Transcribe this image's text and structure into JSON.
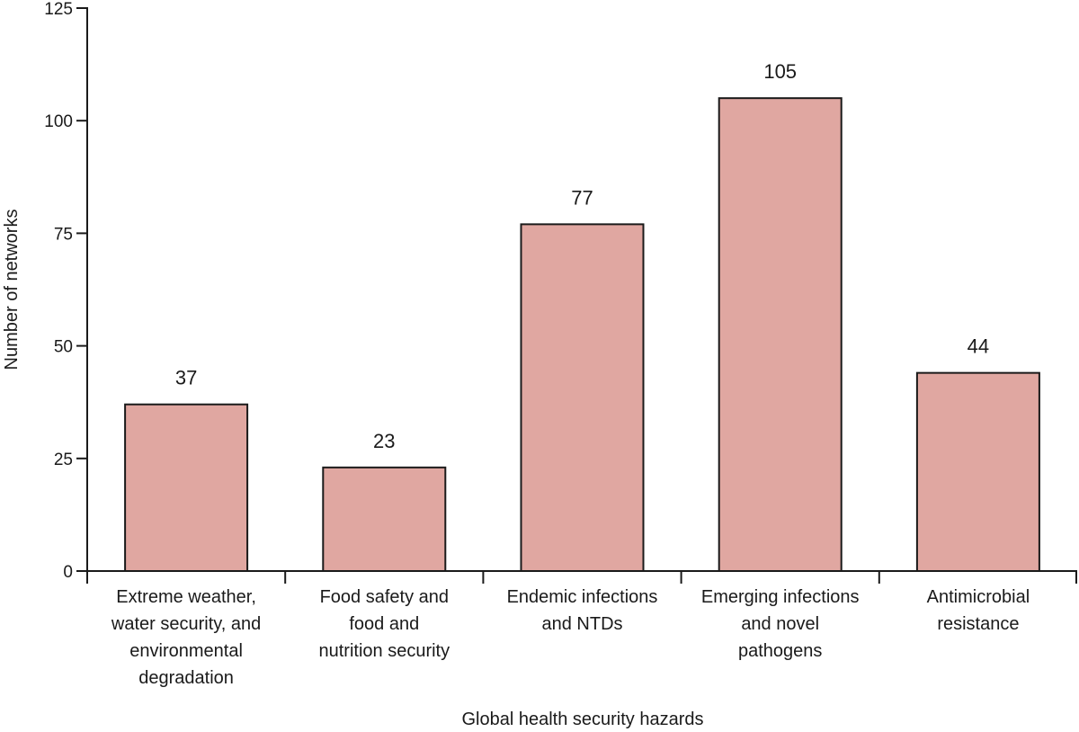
{
  "chart_data": {
    "type": "bar",
    "categories": [
      [
        "Extreme weather,",
        "water security, and",
        "environmental",
        "degradation"
      ],
      [
        "Food safety and",
        "food and",
        "nutrition security"
      ],
      [
        "Endemic infections",
        "and NTDs"
      ],
      [
        "Emerging infections",
        "and novel",
        "pathogens"
      ],
      [
        "Antimicrobial",
        "resistance"
      ]
    ],
    "values": [
      37,
      23,
      77,
      105,
      44
    ],
    "data_labels": [
      "37",
      "23",
      "77",
      "105",
      "44"
    ],
    "xlabel": "Global health security hazards",
    "ylabel": "Number of networks",
    "ylim": [
      0,
      125
    ],
    "yticks": [
      0,
      25,
      50,
      75,
      100,
      125
    ],
    "grid": false,
    "bar_color": "#e0a7a1",
    "bar_edge_color": "#1a1a1a"
  }
}
